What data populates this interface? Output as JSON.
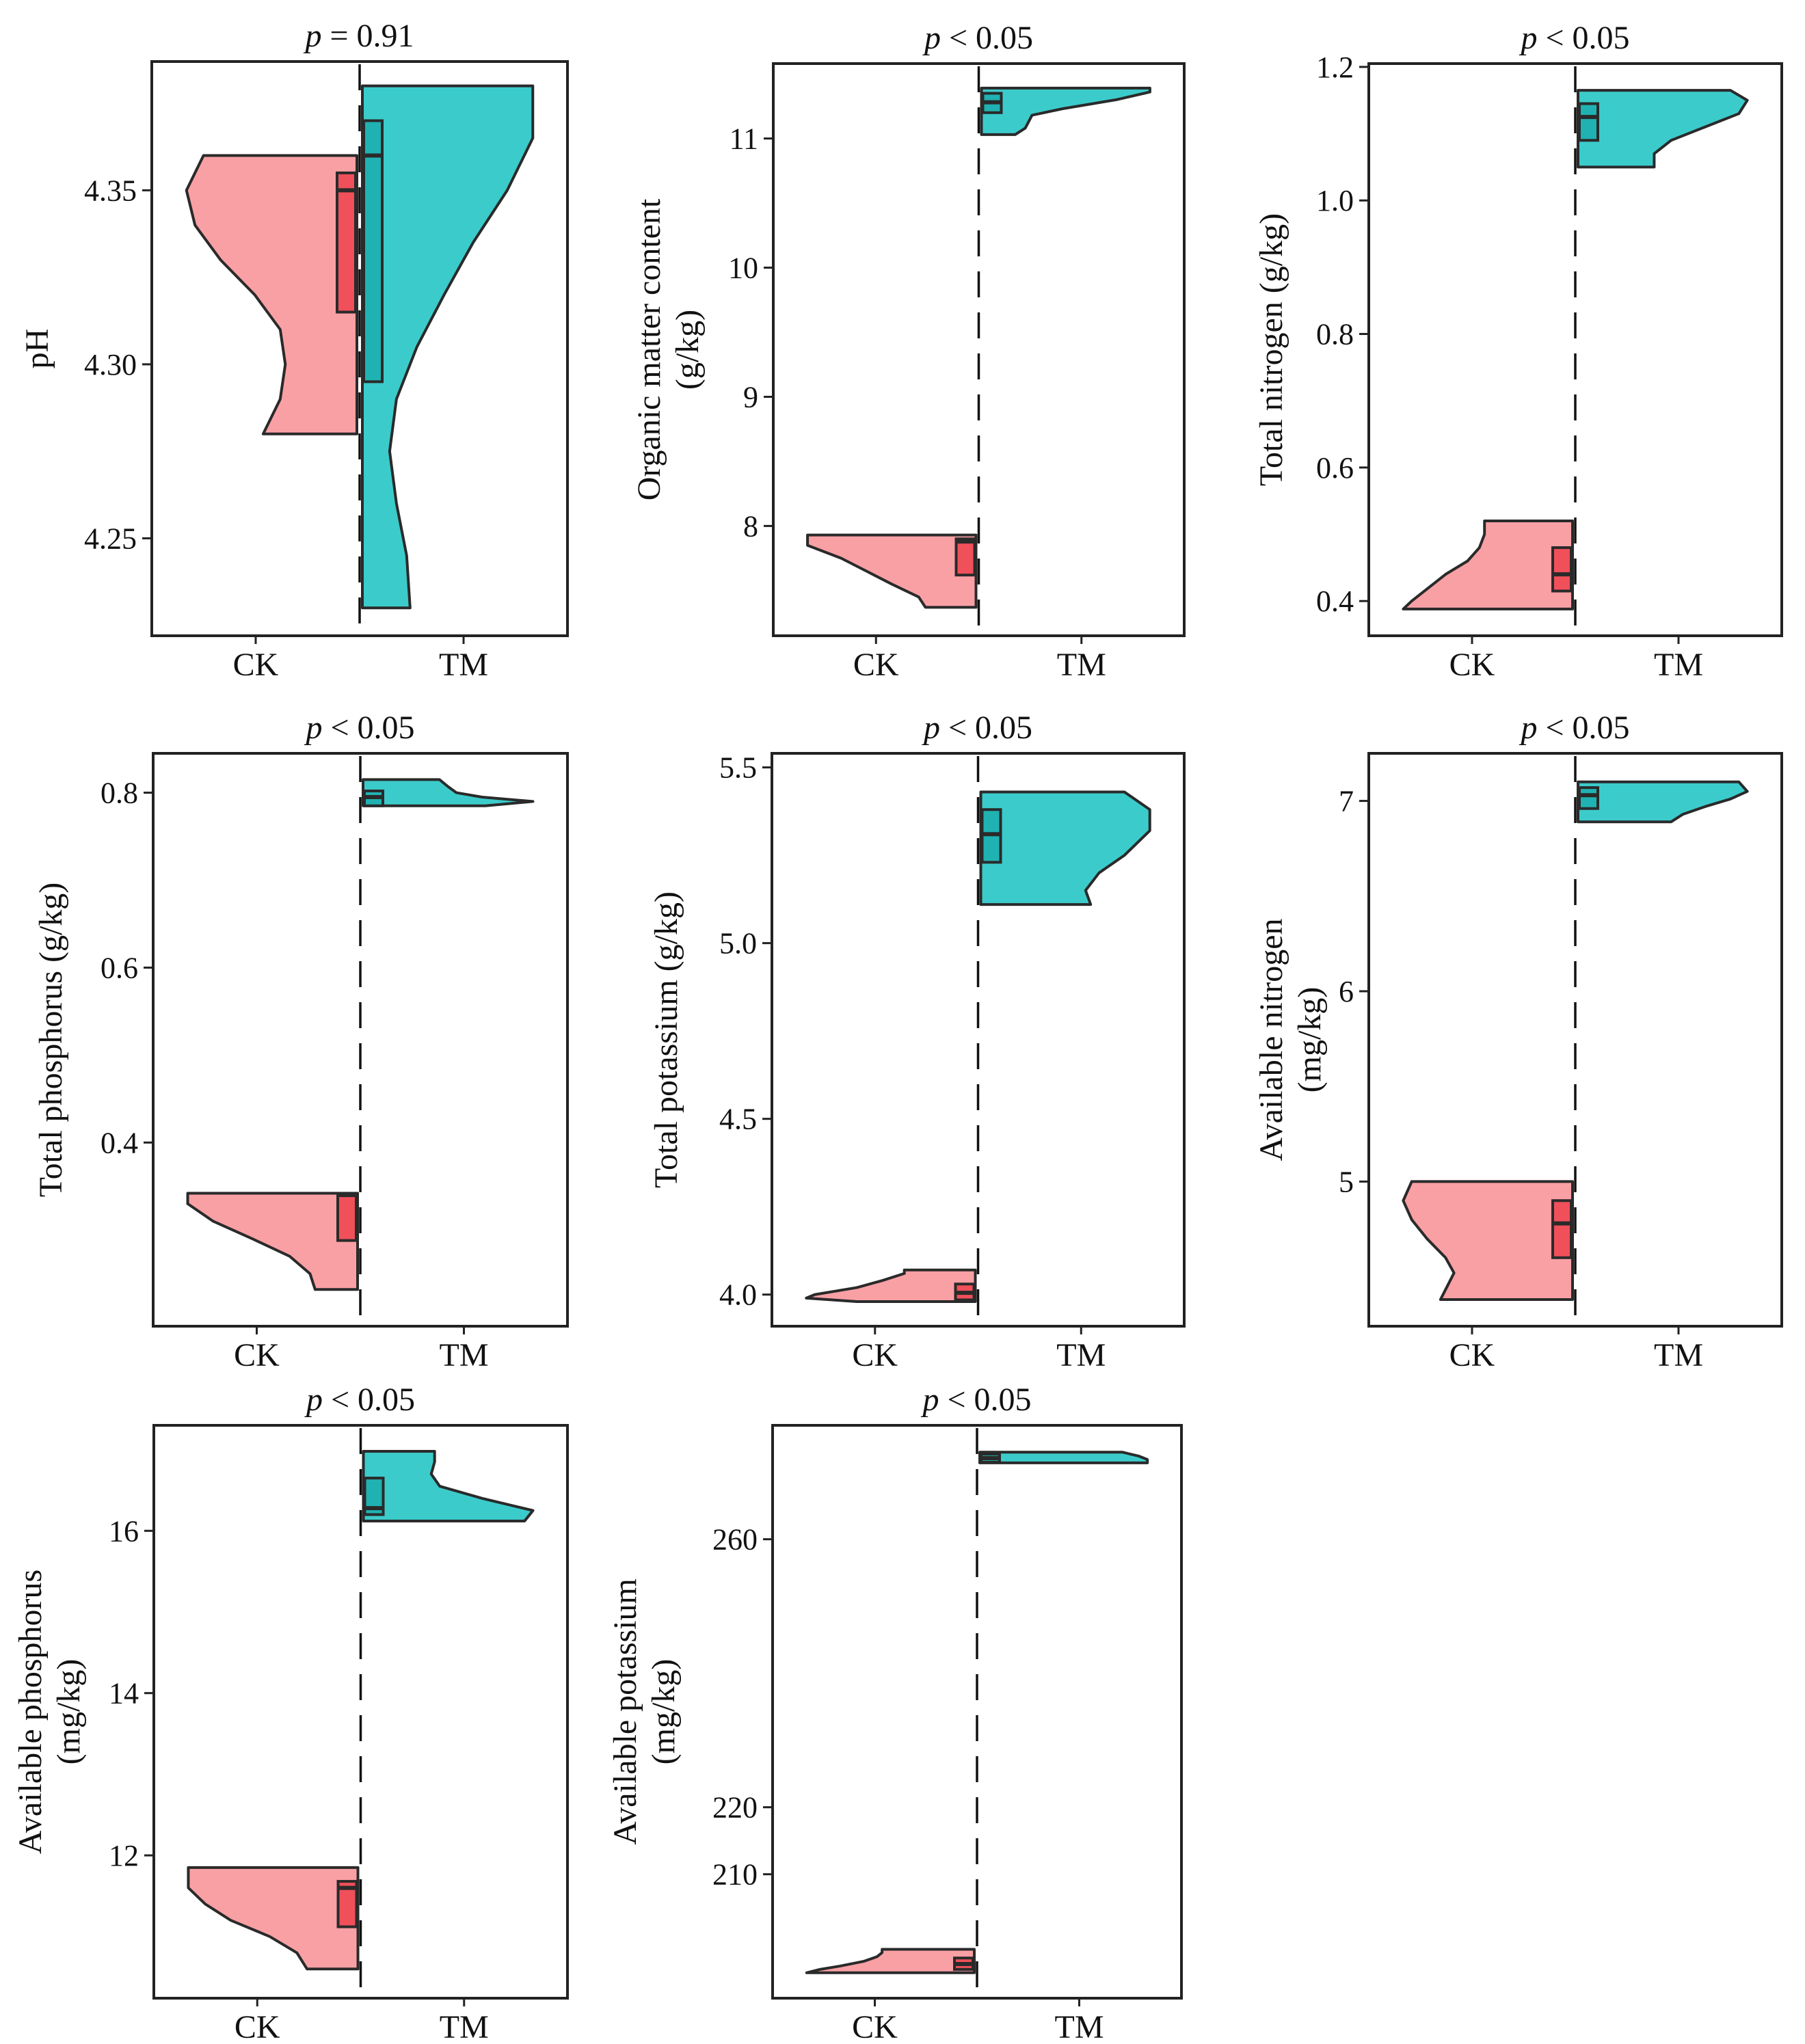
{
  "colors": {
    "ck_violin": "#F9A0A5",
    "ck_box": "#F0505A",
    "tm_violin": "#3CCBCB",
    "tm_box": "#20B2B2",
    "stroke": "#2a2a2a"
  },
  "chart_data": [
    {
      "type": "split-violin",
      "title_p": "p",
      "title_rest": " = 0.91",
      "ylabel": [
        "pH"
      ],
      "categories": [
        "CK",
        "TM"
      ],
      "ylim": [
        4.222,
        4.387
      ],
      "yticks": [
        4.25,
        4.3,
        4.35
      ],
      "ytick_labels": [
        "4.25",
        "4.30",
        "4.35"
      ],
      "series": [
        {
          "name": "CK",
          "min": 4.28,
          "max": 4.36,
          "q1": 4.315,
          "median": 4.35,
          "q3": 4.355,
          "density": [
            [
              4.28,
              0.55
            ],
            [
              4.29,
              0.45
            ],
            [
              4.3,
              0.42
            ],
            [
              4.31,
              0.45
            ],
            [
              4.32,
              0.6
            ],
            [
              4.33,
              0.8
            ],
            [
              4.34,
              0.95
            ],
            [
              4.35,
              1.0
            ],
            [
              4.36,
              0.9
            ]
          ]
        },
        {
          "name": "TM",
          "min": 4.23,
          "max": 4.38,
          "q1": 4.295,
          "median": 4.36,
          "q3": 4.37,
          "density": [
            [
              4.23,
              0.28
            ],
            [
              4.245,
              0.26
            ],
            [
              4.26,
              0.2
            ],
            [
              4.275,
              0.16
            ],
            [
              4.29,
              0.2
            ],
            [
              4.305,
              0.32
            ],
            [
              4.32,
              0.48
            ],
            [
              4.335,
              0.65
            ],
            [
              4.35,
              0.85
            ],
            [
              4.365,
              1.0
            ],
            [
              4.38,
              1.0
            ]
          ]
        }
      ]
    },
    {
      "type": "split-violin",
      "title_p": "p",
      "title_rest": " < 0.05",
      "ylabel": [
        "Organic matter content",
        "(g/kg)"
      ],
      "categories": [
        "CK",
        "TM"
      ],
      "ylim": [
        7.15,
        11.58
      ],
      "yticks": [
        8,
        9,
        10,
        11
      ],
      "ytick_labels": [
        "8",
        "9",
        "10",
        "11"
      ],
      "series": [
        {
          "name": "CK",
          "min": 7.37,
          "max": 7.93,
          "q1": 7.62,
          "median": 7.88,
          "q3": 7.9,
          "density": [
            [
              7.37,
              0.3
            ],
            [
              7.45,
              0.34
            ],
            [
              7.55,
              0.5
            ],
            [
              7.65,
              0.65
            ],
            [
              7.75,
              0.8
            ],
            [
              7.85,
              1.0
            ],
            [
              7.93,
              1.0
            ]
          ]
        },
        {
          "name": "TM",
          "min": 11.03,
          "max": 11.39,
          "q1": 11.2,
          "median": 11.28,
          "q3": 11.35,
          "density": [
            [
              11.03,
              0.2
            ],
            [
              11.08,
              0.26
            ],
            [
              11.13,
              0.28
            ],
            [
              11.18,
              0.3
            ],
            [
              11.23,
              0.48
            ],
            [
              11.3,
              0.8
            ],
            [
              11.36,
              1.0
            ],
            [
              11.39,
              1.0
            ]
          ]
        }
      ]
    },
    {
      "type": "split-violin",
      "title_p": "p",
      "title_rest": " < 0.05",
      "ylabel": [
        "Total nitrogen (g/kg)"
      ],
      "categories": [
        "CK",
        "TM"
      ],
      "ylim": [
        0.348,
        1.205
      ],
      "yticks": [
        0.4,
        0.6,
        0.8,
        1.0,
        1.2
      ],
      "ytick_labels": [
        "0.4",
        "0.6",
        "0.8",
        "1.0",
        "1.2"
      ],
      "series": [
        {
          "name": "CK",
          "min": 0.388,
          "max": 0.52,
          "q1": 0.415,
          "median": 0.44,
          "q3": 0.48,
          "density": [
            [
              0.388,
              1.0
            ],
            [
              0.4,
              0.95
            ],
            [
              0.42,
              0.85
            ],
            [
              0.44,
              0.75
            ],
            [
              0.46,
              0.62
            ],
            [
              0.48,
              0.55
            ],
            [
              0.5,
              0.52
            ],
            [
              0.52,
              0.52
            ]
          ]
        },
        {
          "name": "TM",
          "min": 1.05,
          "max": 1.165,
          "q1": 1.09,
          "median": 1.125,
          "q3": 1.145,
          "density": [
            [
              1.05,
              0.45
            ],
            [
              1.07,
              0.45
            ],
            [
              1.09,
              0.55
            ],
            [
              1.11,
              0.75
            ],
            [
              1.13,
              0.95
            ],
            [
              1.15,
              1.0
            ],
            [
              1.165,
              0.9
            ]
          ]
        }
      ]
    },
    {
      "type": "split-violin",
      "title_p": "p",
      "title_rest": " < 0.05",
      "ylabel": [
        "Total phosphorus (g/kg)"
      ],
      "categories": [
        "CK",
        "TM"
      ],
      "ylim": [
        0.19,
        0.845
      ],
      "yticks": [
        0.4,
        0.6,
        0.8
      ],
      "ytick_labels": [
        "0.4",
        "0.6",
        "0.8"
      ],
      "series": [
        {
          "name": "CK",
          "min": 0.232,
          "max": 0.342,
          "q1": 0.288,
          "median": 0.34,
          "q3": 0.342,
          "density": [
            [
              0.232,
              0.25
            ],
            [
              0.25,
              0.28
            ],
            [
              0.27,
              0.4
            ],
            [
              0.29,
              0.62
            ],
            [
              0.31,
              0.85
            ],
            [
              0.33,
              1.0
            ],
            [
              0.342,
              1.0
            ]
          ]
        },
        {
          "name": "TM",
          "min": 0.785,
          "max": 0.815,
          "q1": 0.785,
          "median": 0.795,
          "q3": 0.802,
          "density": [
            [
              0.785,
              0.72
            ],
            [
              0.79,
              1.0
            ],
            [
              0.795,
              0.7
            ],
            [
              0.8,
              0.55
            ],
            [
              0.807,
              0.5
            ],
            [
              0.815,
              0.45
            ]
          ]
        }
      ]
    },
    {
      "type": "split-violin",
      "title_p": "p",
      "title_rest": " < 0.05",
      "ylabel": [
        "Total potassium (g/kg)"
      ],
      "categories": [
        "CK",
        "TM"
      ],
      "ylim": [
        3.91,
        5.54
      ],
      "yticks": [
        4.0,
        4.5,
        5.0,
        5.5
      ],
      "ytick_labels": [
        "4.0",
        "4.5",
        "5.0",
        "5.5"
      ],
      "series": [
        {
          "name": "CK",
          "min": 3.98,
          "max": 4.07,
          "q1": 3.985,
          "median": 4.005,
          "q3": 4.03,
          "density": [
            [
              3.98,
              0.7
            ],
            [
              3.99,
              1.0
            ],
            [
              4.0,
              0.95
            ],
            [
              4.02,
              0.7
            ],
            [
              4.04,
              0.55
            ],
            [
              4.06,
              0.42
            ],
            [
              4.07,
              0.42
            ]
          ]
        },
        {
          "name": "TM",
          "min": 5.11,
          "max": 5.43,
          "q1": 5.23,
          "median": 5.31,
          "q3": 5.38,
          "density": [
            [
              5.11,
              0.65
            ],
            [
              5.15,
              0.62
            ],
            [
              5.2,
              0.7
            ],
            [
              5.25,
              0.85
            ],
            [
              5.32,
              1.0
            ],
            [
              5.38,
              1.0
            ],
            [
              5.43,
              0.85
            ]
          ]
        }
      ]
    },
    {
      "type": "split-violin",
      "title_p": "p",
      "title_rest": " < 0.05",
      "ylabel": [
        "Available nitrogen",
        "(mg/kg)"
      ],
      "categories": [
        "CK",
        "TM"
      ],
      "ylim": [
        4.24,
        7.25
      ],
      "yticks": [
        5,
        6,
        7
      ],
      "ytick_labels": [
        "5",
        "6",
        "7"
      ],
      "series": [
        {
          "name": "CK",
          "min": 4.38,
          "max": 5.0,
          "q1": 4.6,
          "median": 4.78,
          "q3": 4.9,
          "density": [
            [
              4.38,
              0.78
            ],
            [
              4.45,
              0.74
            ],
            [
              4.52,
              0.7
            ],
            [
              4.6,
              0.75
            ],
            [
              4.7,
              0.86
            ],
            [
              4.8,
              0.95
            ],
            [
              4.9,
              1.0
            ],
            [
              5.0,
              0.95
            ]
          ]
        },
        {
          "name": "TM",
          "min": 6.89,
          "max": 7.1,
          "q1": 6.96,
          "median": 7.03,
          "q3": 7.07,
          "density": [
            [
              6.89,
              0.55
            ],
            [
              6.93,
              0.62
            ],
            [
              6.97,
              0.75
            ],
            [
              7.01,
              0.9
            ],
            [
              7.05,
              1.0
            ],
            [
              7.1,
              0.95
            ]
          ]
        }
      ]
    },
    {
      "type": "split-violin",
      "title_p": "p",
      "title_rest": " < 0.05",
      "ylabel": [
        "Available phosphorus",
        "(mg/kg)"
      ],
      "categories": [
        "CK",
        "TM"
      ],
      "ylim": [
        10.24,
        17.3
      ],
      "yticks": [
        12,
        14,
        16
      ],
      "ytick_labels": [
        "12",
        "14",
        "16"
      ],
      "series": [
        {
          "name": "CK",
          "min": 10.6,
          "max": 11.85,
          "q1": 11.12,
          "median": 11.6,
          "q3": 11.68,
          "density": [
            [
              10.6,
              0.3
            ],
            [
              10.8,
              0.36
            ],
            [
              11.0,
              0.52
            ],
            [
              11.2,
              0.75
            ],
            [
              11.4,
              0.9
            ],
            [
              11.6,
              1.0
            ],
            [
              11.85,
              1.0
            ]
          ]
        },
        {
          "name": "TM",
          "min": 16.12,
          "max": 16.98,
          "q1": 16.2,
          "median": 16.28,
          "q3": 16.65,
          "density": [
            [
              16.12,
              0.95
            ],
            [
              16.25,
              1.0
            ],
            [
              16.4,
              0.7
            ],
            [
              16.55,
              0.45
            ],
            [
              16.7,
              0.4
            ],
            [
              16.85,
              0.42
            ],
            [
              16.98,
              0.42
            ]
          ]
        }
      ]
    },
    {
      "type": "split-violin",
      "title_p": "p",
      "title_rest": " < 0.05",
      "ylabel": [
        "Available potassium",
        "(mg/kg)"
      ],
      "categories": [
        "CK",
        "TM"
      ],
      "ylim": [
        191.5,
        277.0
      ],
      "yticks": [
        210,
        220,
        260
      ],
      "ytick_labels": [
        "210",
        "220",
        "260"
      ],
      "series": [
        {
          "name": "CK",
          "min": 195.3,
          "max": 198.8,
          "q1": 195.8,
          "median": 196.6,
          "q3": 197.5,
          "density": [
            [
              195.3,
              1.0
            ],
            [
              195.8,
              0.92
            ],
            [
              196.3,
              0.8
            ],
            [
              197.0,
              0.66
            ],
            [
              197.7,
              0.58
            ],
            [
              198.3,
              0.55
            ],
            [
              198.8,
              0.55
            ]
          ]
        },
        {
          "name": "TM",
          "min": 271.4,
          "max": 273.0,
          "q1": 271.5,
          "median": 272.1,
          "q3": 272.7,
          "density": [
            [
              271.4,
              1.0
            ],
            [
              271.9,
              1.0
            ],
            [
              272.4,
              0.95
            ],
            [
              273.0,
              0.85
            ]
          ]
        }
      ]
    }
  ]
}
